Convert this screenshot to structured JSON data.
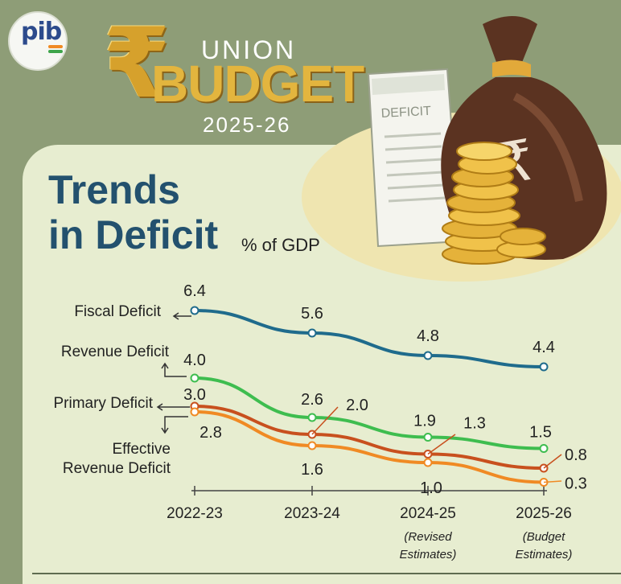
{
  "header": {
    "logo_text": "pib",
    "currency_symbol": "₹",
    "union_label": "UNION",
    "budget_label": "BUDGET",
    "year_label": "2025-26",
    "receipt_label": "DEFICIT",
    "bag_symbol": "₹"
  },
  "colors": {
    "background": "#8e9d77",
    "card": "#e7edd0",
    "title": "#23516e",
    "fiscal": "#1f6b8c",
    "revenue": "#3ebd4f",
    "primary": "#c8501e",
    "effective": "#f08a24"
  },
  "chart_data": {
    "type": "line",
    "title": "Trends in Deficit",
    "title_lines": [
      "Trends",
      "in Deficit"
    ],
    "ylabel": "% of GDP",
    "ylim": [
      0,
      7
    ],
    "grid": false,
    "categories": [
      "2022-23",
      "2023-24",
      "2024-25",
      "2025-26"
    ],
    "category_notes": [
      null,
      null,
      [
        "(Revised",
        "Estimates)"
      ],
      [
        "(Budget",
        "Estimates)"
      ]
    ],
    "series": [
      {
        "key": "fiscal",
        "name": "Fiscal Deficit",
        "values": [
          6.4,
          5.6,
          4.8,
          4.4
        ]
      },
      {
        "key": "revenue",
        "name": "Revenue Deficit",
        "values": [
          4.0,
          2.6,
          1.9,
          1.5
        ]
      },
      {
        "key": "primary",
        "name": "Primary Deficit",
        "values": [
          3.0,
          2.0,
          1.3,
          0.8
        ]
      },
      {
        "key": "effective",
        "name": "Effective Revenue Deficit",
        "name_lines": [
          "Effective",
          "Revenue Deficit"
        ],
        "values": [
          2.8,
          1.6,
          1.0,
          0.3
        ]
      }
    ]
  }
}
